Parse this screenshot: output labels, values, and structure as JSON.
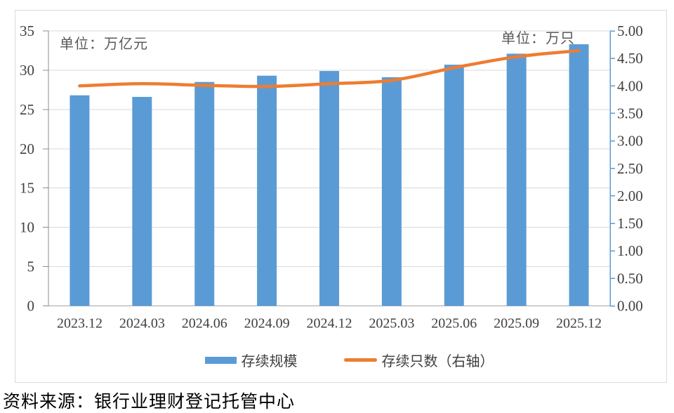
{
  "chart_data": {
    "type": "bar",
    "subtype": "bar-line-combo",
    "categories": [
      "2023.12",
      "2024.03",
      "2024.06",
      "2024.09",
      "2024.12",
      "2025.03",
      "2025.06",
      "2025.09",
      "2025.12"
    ],
    "series": [
      {
        "name": "存续规模",
        "type": "bar",
        "axis": "left",
        "color": "#5B9BD5",
        "values": [
          26.8,
          26.6,
          28.5,
          29.3,
          29.9,
          29.1,
          30.7,
          32.1,
          33.3
        ]
      },
      {
        "name": "存续只数（右轴）",
        "type": "line",
        "axis": "right",
        "color": "#ED7D31",
        "values": [
          4.0,
          4.04,
          4.01,
          3.99,
          4.04,
          4.1,
          4.33,
          4.53,
          4.64
        ]
      }
    ],
    "left_axis": {
      "unit_label": "单位：万亿元",
      "min": 0,
      "max": 35,
      "tick_step": 5,
      "ticks": [
        "35",
        "30",
        "25",
        "20",
        "15",
        "10",
        "5",
        "0"
      ]
    },
    "right_axis": {
      "unit_label": "单位：万只",
      "min": 0,
      "max": 5,
      "tick_step": 0.5,
      "ticks": [
        "5.00",
        "4.50",
        "4.00",
        "3.50",
        "3.00",
        "2.50",
        "2.00",
        "1.50",
        "1.00",
        "0.50",
        "0.00"
      ]
    },
    "legend_position": "bottom",
    "grid": true,
    "colors": {
      "bar": "#5B9BD5",
      "line": "#ED7D31",
      "right_axis_line": "#5B9BD5",
      "left_axis_line": "#8C8C8C",
      "baseline": "#A6A6A6",
      "gridline": "#D9D9D9",
      "tick_text": "#404040",
      "unit_text": "#595959",
      "border": "#D9D9D9"
    }
  },
  "footer": {
    "source_text": "资料来源：银行业理财登记托管中心"
  }
}
